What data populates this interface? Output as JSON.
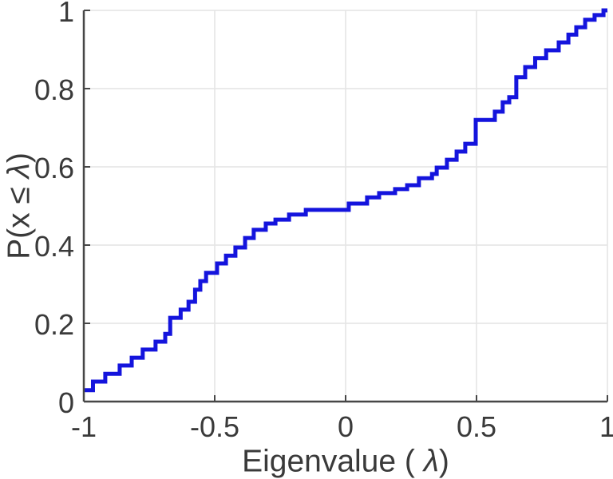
{
  "figure": {
    "background": "#ffffff",
    "line_color": "#1414dd",
    "axis_color": "#474747",
    "grid_color": "#e4e4e4",
    "text_color": "#3a3a3a"
  },
  "labels": {
    "xlabel_pre": "Eigenvalue ( ",
    "xlabel_lambda": "λ",
    "xlabel_post": ")",
    "ylabel_pre": "P(x ≤ ",
    "ylabel_lambda": "λ",
    "ylabel_post": ")"
  },
  "chart_data": {
    "type": "line",
    "subtype": "empirical-cdf-staircase",
    "title": "",
    "xlabel": "Eigenvalue ( λ)",
    "ylabel": "P(x ≤ λ)",
    "xlim": [
      -1,
      1
    ],
    "ylim": [
      0,
      1
    ],
    "x_ticks": [
      -1,
      -0.5,
      0,
      0.5,
      1
    ],
    "x_tick_labels": [
      "-1",
      "-0.5",
      "0",
      "0.5",
      "1"
    ],
    "y_ticks": [
      0,
      0.2,
      0.4,
      0.6,
      0.8,
      1
    ],
    "y_tick_labels": [
      "0",
      "0.2",
      "0.4",
      "0.6",
      "0.8",
      "1"
    ],
    "grid": true,
    "legend": false,
    "series": [
      {
        "name": "eigenvalue-ecdf",
        "start_x": -1.0,
        "start_level": 0.029,
        "end_x": 1.0,
        "steps": [
          [
            -0.965,
            0.051
          ],
          [
            -0.918,
            0.071
          ],
          [
            -0.863,
            0.092
          ],
          [
            -0.817,
            0.112
          ],
          [
            -0.775,
            0.133
          ],
          [
            -0.726,
            0.153
          ],
          [
            -0.689,
            0.173
          ],
          [
            -0.67,
            0.214
          ],
          [
            -0.63,
            0.235
          ],
          [
            -0.6,
            0.255
          ],
          [
            -0.575,
            0.286
          ],
          [
            -0.555,
            0.308
          ],
          [
            -0.533,
            0.329
          ],
          [
            -0.491,
            0.353
          ],
          [
            -0.457,
            0.373
          ],
          [
            -0.421,
            0.394
          ],
          [
            -0.384,
            0.418
          ],
          [
            -0.351,
            0.439
          ],
          [
            -0.305,
            0.455
          ],
          [
            -0.268,
            0.465
          ],
          [
            -0.216,
            0.478
          ],
          [
            -0.152,
            0.49
          ],
          [
            0.012,
            0.506
          ],
          [
            0.082,
            0.522
          ],
          [
            0.128,
            0.533
          ],
          [
            0.189,
            0.543
          ],
          [
            0.235,
            0.553
          ],
          [
            0.28,
            0.571
          ],
          [
            0.33,
            0.582
          ],
          [
            0.348,
            0.598
          ],
          [
            0.387,
            0.618
          ],
          [
            0.424,
            0.639
          ],
          [
            0.457,
            0.659
          ],
          [
            0.497,
            0.72
          ],
          [
            0.57,
            0.741
          ],
          [
            0.6,
            0.765
          ],
          [
            0.625,
            0.778
          ],
          [
            0.652,
            0.829
          ],
          [
            0.686,
            0.855
          ],
          [
            0.724,
            0.878
          ],
          [
            0.766,
            0.898
          ],
          [
            0.814,
            0.918
          ],
          [
            0.851,
            0.938
          ],
          [
            0.881,
            0.957
          ],
          [
            0.915,
            0.976
          ],
          [
            0.951,
            0.988
          ],
          [
            0.985,
            1.0
          ]
        ]
      }
    ]
  }
}
